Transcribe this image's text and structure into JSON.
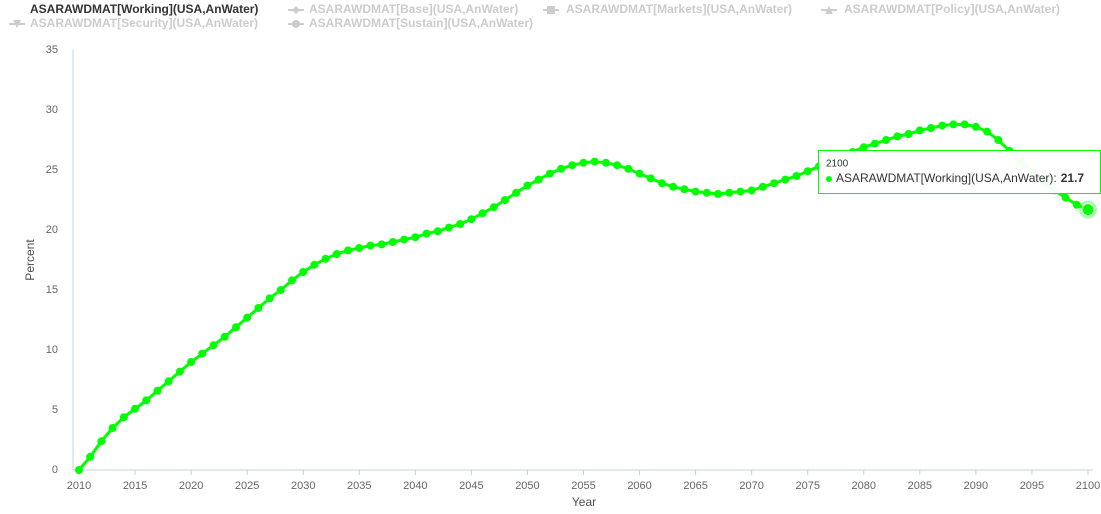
{
  "chart_data": {
    "type": "line",
    "x_label": "Year",
    "y_label": "Percent",
    "x": [
      2010,
      2011,
      2012,
      2013,
      2014,
      2015,
      2016,
      2017,
      2018,
      2019,
      2020,
      2021,
      2022,
      2023,
      2024,
      2025,
      2026,
      2027,
      2028,
      2029,
      2030,
      2031,
      2032,
      2033,
      2034,
      2035,
      2036,
      2037,
      2038,
      2039,
      2040,
      2041,
      2042,
      2043,
      2044,
      2045,
      2046,
      2047,
      2048,
      2049,
      2050,
      2051,
      2052,
      2053,
      2054,
      2055,
      2056,
      2057,
      2058,
      2059,
      2060,
      2061,
      2062,
      2063,
      2064,
      2065,
      2066,
      2067,
      2068,
      2069,
      2070,
      2071,
      2072,
      2073,
      2074,
      2075,
      2076,
      2077,
      2078,
      2079,
      2080,
      2081,
      2082,
      2083,
      2084,
      2085,
      2086,
      2087,
      2088,
      2089,
      2090,
      2091,
      2092,
      2093,
      2094,
      2095,
      2096,
      2097,
      2098,
      2099,
      2100
    ],
    "series": [
      {
        "name": "ASARAWDMAT[Working](USA,AnWater)",
        "color": "#00ff00",
        "marker": "circle",
        "visible": true,
        "values": [
          0,
          1.1,
          2.4,
          3.5,
          4.4,
          5.1,
          5.8,
          6.6,
          7.4,
          8.2,
          9.0,
          9.7,
          10.4,
          11.1,
          11.9,
          12.7,
          13.5,
          14.3,
          15.0,
          15.8,
          16.5,
          17.1,
          17.6,
          18.0,
          18.3,
          18.5,
          18.7,
          18.8,
          19.0,
          19.2,
          19.4,
          19.7,
          19.9,
          20.2,
          20.5,
          20.9,
          21.4,
          21.9,
          22.5,
          23.1,
          23.7,
          24.2,
          24.7,
          25.1,
          25.4,
          25.6,
          25.7,
          25.6,
          25.4,
          25.1,
          24.7,
          24.3,
          23.9,
          23.6,
          23.4,
          23.2,
          23.1,
          23.0,
          23.1,
          23.2,
          23.3,
          23.6,
          23.9,
          24.2,
          24.5,
          24.9,
          25.3,
          25.7,
          26.1,
          26.5,
          26.9,
          27.2,
          27.5,
          27.8,
          28.0,
          28.3,
          28.5,
          28.7,
          28.8,
          28.8,
          28.6,
          28.2,
          27.5,
          26.6,
          25.7,
          24.8,
          24.0,
          23.3,
          22.7,
          22.1,
          21.7
        ]
      },
      {
        "name": "ASARAWDMAT[Base](USA,AnWater)",
        "color": "#cccccc",
        "marker": "diamond",
        "visible": false
      },
      {
        "name": "ASARAWDMAT[Markets](USA,AnWater)",
        "color": "#cccccc",
        "marker": "square",
        "visible": false
      },
      {
        "name": "ASARAWDMAT[Policy](USA,AnWater)",
        "color": "#cccccc",
        "marker": "triangle",
        "visible": false
      },
      {
        "name": "ASARAWDMAT[Security](USA,AnWater)",
        "color": "#cccccc",
        "marker": "triangle-down",
        "visible": false
      },
      {
        "name": "ASARAWDMAT[Sustain](USA,AnWater)",
        "color": "#cccccc",
        "marker": "circle",
        "visible": false
      }
    ],
    "xlim": [
      2010,
      2100
    ],
    "ylim": [
      0,
      35
    ],
    "xticks": [
      2010,
      2015,
      2020,
      2025,
      2030,
      2035,
      2040,
      2045,
      2050,
      2055,
      2060,
      2065,
      2070,
      2075,
      2080,
      2085,
      2090,
      2095,
      2100
    ],
    "yticks": [
      0,
      5,
      10,
      15,
      20,
      25,
      30,
      35
    ],
    "grid": false,
    "tooltip": {
      "index": 90,
      "separator": ":"
    }
  }
}
